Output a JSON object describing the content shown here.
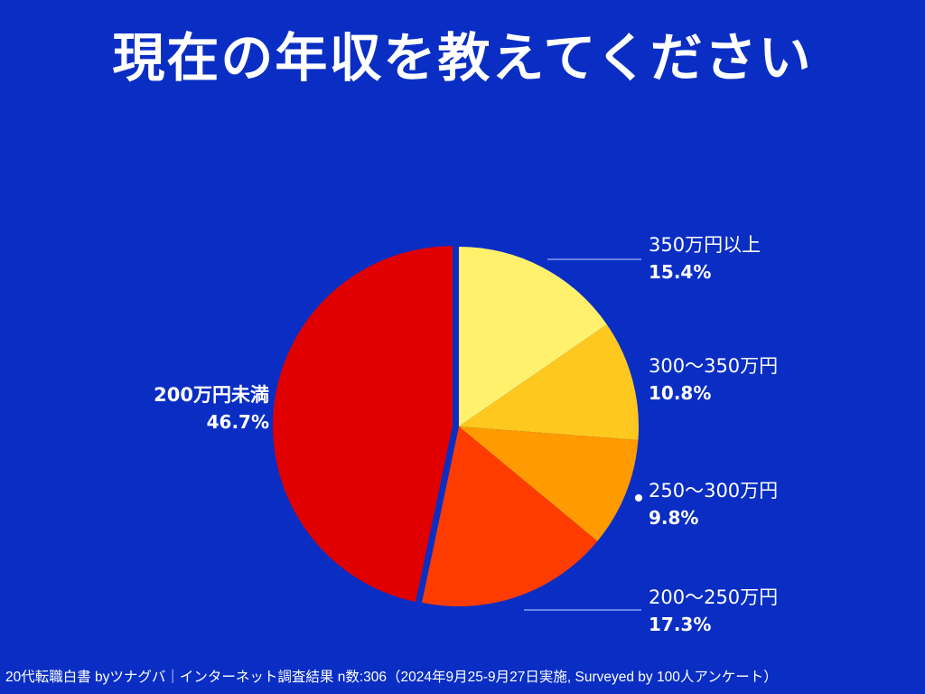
{
  "title": "現在の年収を教えてください",
  "footer": "20代転職白書 byツナグバ｜インターネット調査結果 n数:306（2024年9月25-9月27日実施, Surveyed by 100人アンケート）",
  "chart_data": {
    "type": "pie",
    "title": "現在の年収を教えてください",
    "slices": [
      {
        "label": "350万円以上",
        "value": 15.4,
        "value_label": "15.4%",
        "color": "#fff16b"
      },
      {
        "label": "300〜350万円",
        "value": 10.8,
        "value_label": "10.8%",
        "color": "#ffc81f"
      },
      {
        "label": "250〜300万円",
        "value": 9.8,
        "value_label": "9.8%",
        "color": "#ff9a00"
      },
      {
        "label": "200〜250万円",
        "value": 17.3,
        "value_label": "17.3%",
        "color": "#ff3c00"
      },
      {
        "label": "200万円未満",
        "value": 46.7,
        "value_label": "46.7%",
        "color": "#e00000"
      }
    ],
    "start": "12 o'clock",
    "direction": "clockwise",
    "legend": "none"
  }
}
